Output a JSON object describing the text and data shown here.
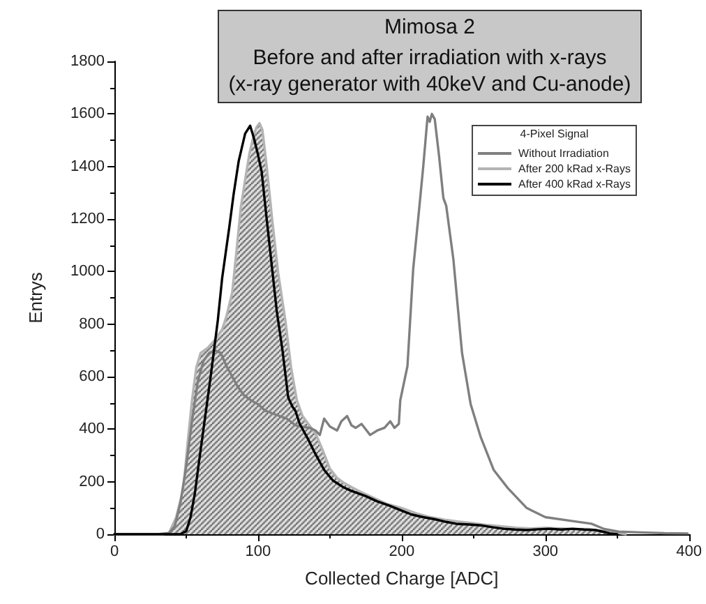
{
  "chart_data": {
    "type": "line",
    "title": "Mimosa 2",
    "subtitle": "Before and after irradiation with x-rays\n(x-ray generator with 40keV and Cu-anode)",
    "xlabel": "Collected Charge [ADC]",
    "ylabel": "Entrys",
    "legend_title": "4-Pixel Signal",
    "series": [
      {
        "name": "Without Irradiation",
        "type": "line",
        "color": "#7f7f7f",
        "x": [
          0,
          30,
          38,
          42,
          46,
          50,
          54,
          58,
          62,
          66,
          70,
          74,
          78,
          82,
          86,
          90,
          95,
          100,
          105,
          110,
          115,
          120,
          126,
          130,
          136,
          140,
          143,
          146,
          150,
          155,
          158,
          162,
          165,
          168,
          172,
          178,
          183,
          188,
          192,
          195,
          198,
          199,
          204,
          208,
          212,
          215,
          218,
          219.5,
          221,
          223,
          226,
          229,
          231,
          236,
          242,
          248,
          255,
          264,
          274,
          287,
          300,
          319,
          332,
          341,
          351,
          367,
          383,
          399
        ],
        "values": [
          0,
          0,
          5,
          30,
          120,
          260,
          430,
          580,
          660,
          690,
          700,
          690,
          640,
          600,
          560,
          530,
          510,
          495,
          470,
          460,
          450,
          440,
          415,
          410,
          405,
          395,
          378,
          440,
          410,
          395,
          430,
          450,
          415,
          405,
          420,
          378,
          395,
          405,
          430,
          405,
          420,
          510,
          640,
          1010,
          1230,
          1400,
          1590,
          1570,
          1600,
          1580,
          1440,
          1280,
          1250,
          1045,
          690,
          495,
          370,
          245,
          175,
          100,
          65,
          50,
          40,
          20,
          10,
          7,
          4,
          3
        ]
      },
      {
        "name": "After 200 kRad x-Rays",
        "type": "area",
        "color": "#b4b4b4",
        "x": [
          0,
          34,
          38,
          43,
          48,
          51,
          54,
          57,
          60,
          65,
          70,
          75,
          78,
          82,
          85,
          88,
          91,
          94,
          97,
          99,
          101,
          103,
          105,
          107,
          110,
          114,
          119,
          123,
          127,
          131,
          135,
          140,
          145,
          150,
          155,
          160,
          170,
          180,
          190,
          200,
          210,
          220,
          230,
          240,
          250,
          260,
          270,
          280,
          290,
          300,
          310,
          320,
          330,
          340,
          350,
          356
        ],
        "values": [
          0,
          0,
          5,
          65,
          175,
          350,
          510,
          635,
          690,
          710,
          740,
          780,
          830,
          920,
          1080,
          1245,
          1350,
          1450,
          1520,
          1550,
          1565,
          1540,
          1450,
          1350,
          1190,
          995,
          815,
          635,
          510,
          450,
          420,
          385,
          320,
          250,
          215,
          195,
          165,
          140,
          115,
          100,
          80,
          65,
          55,
          48,
          42,
          35,
          30,
          25,
          22,
          25,
          22,
          20,
          20,
          12,
          6,
          0
        ]
      },
      {
        "name": "After 400 kRad x-Rays",
        "type": "line",
        "color": "#000000",
        "x": [
          0,
          46,
          50,
          53,
          56,
          59,
          62.5,
          67,
          72,
          75,
          80,
          83,
          86.5,
          91,
          94.5,
          97,
          99.5,
          102.5,
          106,
          109,
          113,
          117,
          121,
          124,
          126,
          129,
          135,
          139,
          146,
          152,
          159,
          165,
          175,
          183,
          191,
          200,
          207,
          215,
          223,
          231,
          239,
          247,
          255,
          263,
          271,
          279,
          287,
          295,
          303,
          311,
          319,
          327,
          335,
          340,
          345,
          350
        ],
        "values": [
          0,
          0,
          12,
          65,
          155,
          280,
          420,
          600,
          815,
          975,
          1170,
          1295,
          1420,
          1525,
          1555,
          1510,
          1455,
          1380,
          1200,
          1050,
          850,
          700,
          520,
          485,
          470,
          420,
          360,
          315,
          245,
          205,
          180,
          165,
          145,
          125,
          110,
          90,
          75,
          65,
          57,
          47,
          39,
          37,
          34,
          27,
          21,
          18,
          16,
          19,
          21,
          18,
          21,
          18,
          16,
          10,
          3,
          0
        ]
      }
    ],
    "xlim": [
      0,
      400
    ],
    "xticks": [
      0,
      {
        "value": 50,
        "label": null
      },
      100,
      {
        "value": 150,
        "label": null
      },
      200,
      {
        "value": 250,
        "label": null
      },
      300,
      {
        "value": 350,
        "label": null
      },
      400
    ],
    "ylim": [
      0,
      1800
    ],
    "yticks": [
      0,
      {
        "value": 100,
        "label": null
      },
      200,
      {
        "value": 300,
        "label": null
      },
      400,
      {
        "value": 500,
        "label": null
      },
      600,
      {
        "value": 700,
        "label": null
      },
      800,
      {
        "value": 900,
        "label": null
      },
      1000,
      {
        "value": 1100,
        "label": null
      },
      1200,
      {
        "value": 1300,
        "label": null
      },
      1400,
      {
        "value": 1500,
        "label": null
      },
      1600,
      {
        "value": 1700,
        "label": null
      },
      1800
    ],
    "legend": "top right",
    "marker": "none",
    "grid": false
  }
}
